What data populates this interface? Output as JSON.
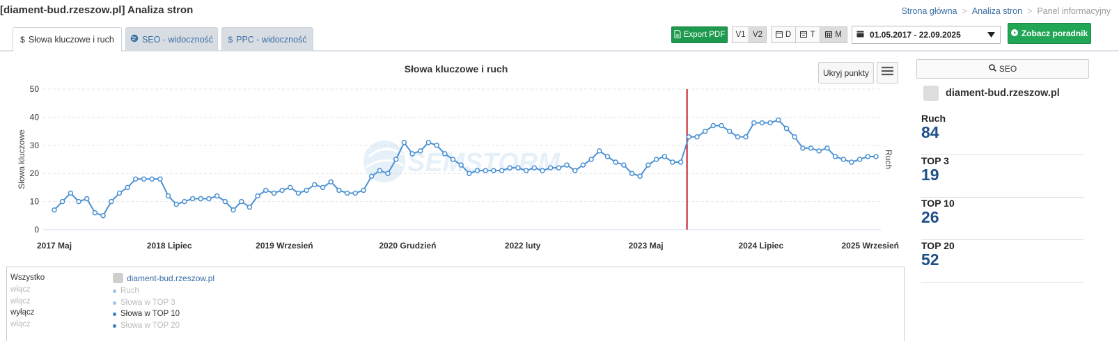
{
  "header": {
    "title": "[diament-bud.rzeszow.pl] Analiza stron",
    "breadcrumb": [
      "Strona główna",
      "Analiza stron",
      "Panel informacyjny"
    ]
  },
  "tabs": [
    {
      "label": "Słowa kluczowe i ruch",
      "icon": "dollar-icon",
      "active": true
    },
    {
      "label": "SEO - widoczność",
      "icon": "globe-icon",
      "active": false
    },
    {
      "label": "PPC - widoczność",
      "icon": "dollar-icon",
      "active": false
    }
  ],
  "toolbar": {
    "export_label": "Export PDF",
    "versions": [
      "V1",
      "V2"
    ],
    "periods": [
      "D",
      "T",
      "M"
    ],
    "date_range": "01.05.2017 - 22.09.2025",
    "guide_label": "Zobacz poradnik"
  },
  "chart": {
    "hide_points_label": "Ukryj punkty"
  },
  "chart_data": {
    "type": "line",
    "title": "Słowa kluczowe i ruch",
    "ylabel": "Słowa kluczowe",
    "ylabel_right": "Ruch",
    "ylim": [
      0,
      50
    ],
    "yticks": [
      0,
      10,
      20,
      30,
      40,
      50
    ],
    "x_tick_labels": [
      "2017 Maj",
      "2018 Lipiec",
      "2019 Wrzesień",
      "2020 Grudzień",
      "2022 luty",
      "2023 Maj",
      "2024 Lipiec",
      "2025 Wrzesień"
    ],
    "x_tick_months": [
      "2017-05",
      "2018-07",
      "2019-09",
      "2020-12",
      "2022-02",
      "2023-05",
      "2024-07",
      "2025-09"
    ],
    "x_start": "2017-05",
    "x_end": "2025-09",
    "marker_line_x": "2023-10",
    "marker_color": "#c0141e",
    "line_color": "#4a90d2",
    "grid": true,
    "series": [
      {
        "name": "Słowa w TOP 10",
        "values": [
          7,
          10,
          13,
          10,
          11,
          6,
          5,
          10,
          13,
          15,
          18,
          18,
          18,
          18,
          12,
          9,
          10,
          11,
          11,
          11,
          12,
          10,
          7,
          10,
          8,
          12,
          14,
          13,
          14,
          15,
          13,
          14,
          16,
          15,
          17,
          14,
          13,
          13,
          14,
          19,
          21,
          20,
          25,
          31,
          27,
          28,
          31,
          30,
          27,
          25,
          23,
          20,
          21,
          21,
          21,
          21,
          22,
          22,
          21,
          22,
          21,
          22,
          22,
          23,
          21,
          23,
          25,
          28,
          26,
          24,
          23,
          20,
          19,
          23,
          25,
          26,
          24,
          24,
          33,
          33,
          35,
          37,
          37,
          35,
          33,
          33,
          38,
          38,
          38,
          39,
          36,
          33,
          29,
          29,
          28,
          29,
          26,
          25,
          24,
          25,
          26,
          26
        ]
      }
    ]
  },
  "legend": {
    "all_label": "Wszystko",
    "domain": "diament-bud.rzeszow.pl",
    "rows": [
      {
        "toggle": "włącz",
        "name": "Ruch",
        "active": false
      },
      {
        "toggle": "włącz",
        "name": "Słowa w TOP 3",
        "active": false
      },
      {
        "toggle": "wyłącz",
        "name": "Słowa w TOP 10",
        "active": true
      },
      {
        "toggle": "włącz",
        "name": "Słowa w TOP 20",
        "active": false
      }
    ]
  },
  "sidebar": {
    "seo_label": "SEO",
    "domain": "diament-bud.rzeszow.pl",
    "stats": [
      {
        "label": "Ruch",
        "value": "84"
      },
      {
        "label": "TOP 3",
        "value": "19"
      },
      {
        "label": "TOP 10",
        "value": "26"
      },
      {
        "label": "TOP 20",
        "value": "52"
      }
    ]
  },
  "colors": {
    "accent": "#1f4e88",
    "link": "#3a6ea5",
    "green": "#1e9a4f"
  }
}
